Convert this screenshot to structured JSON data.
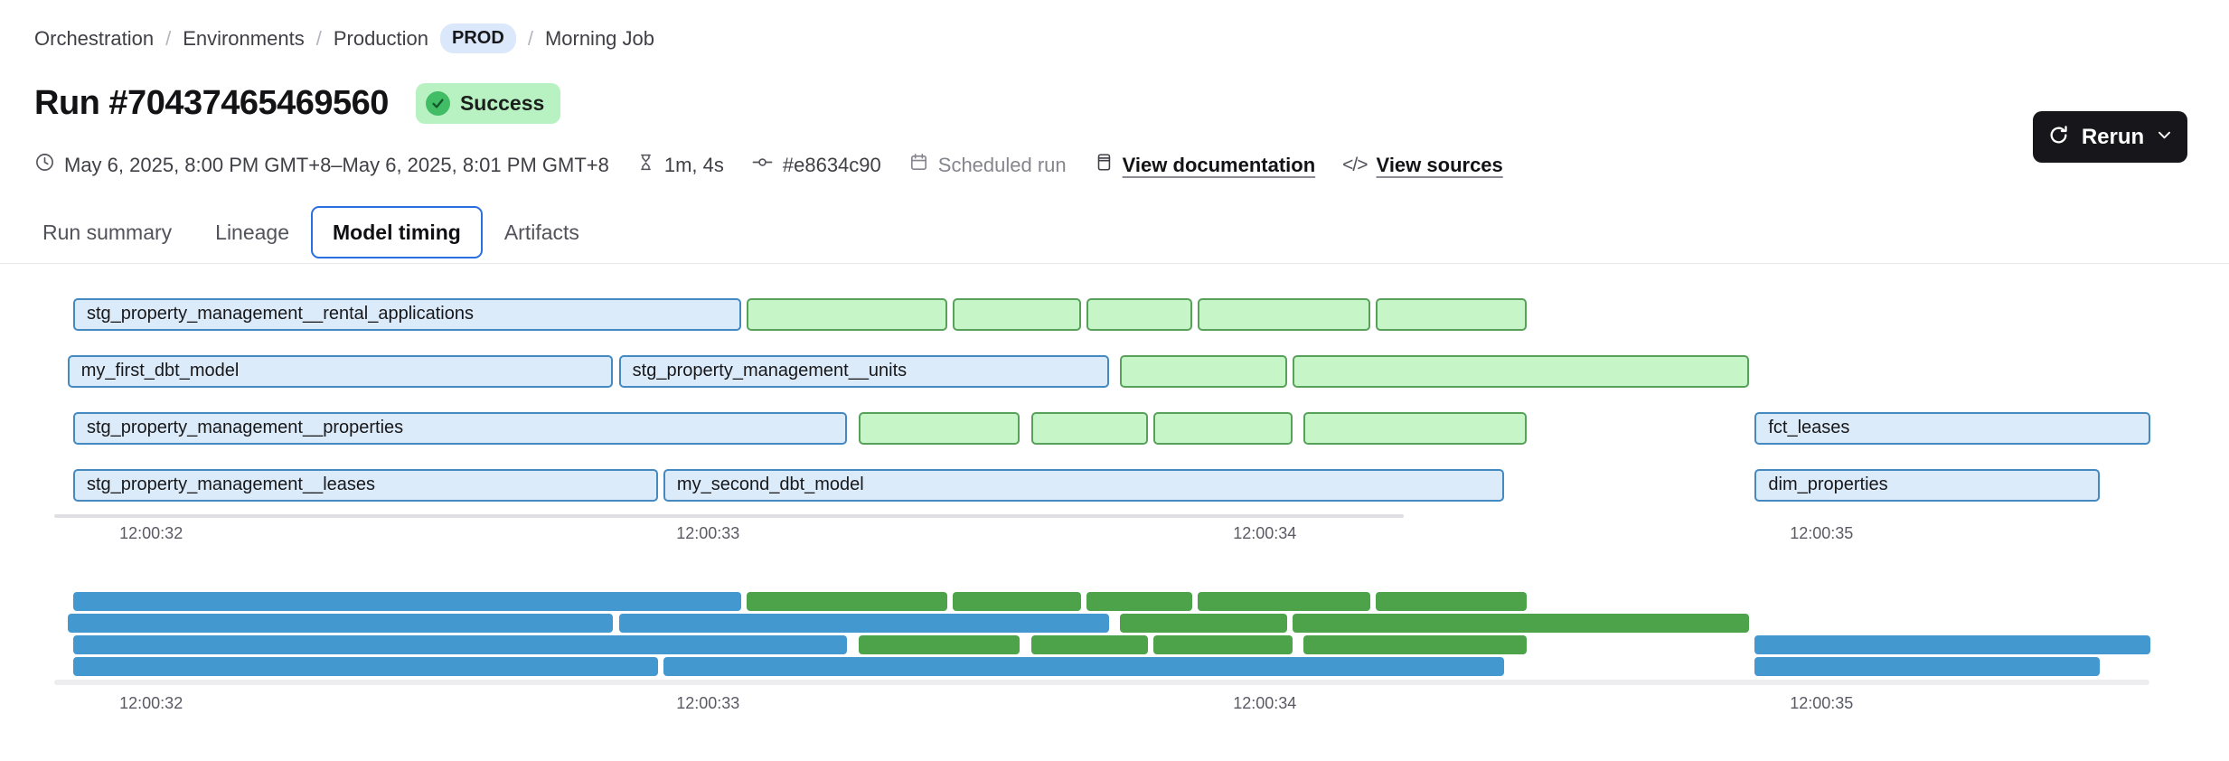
{
  "breadcrumb": {
    "separator": "/",
    "items": [
      "Orchestration",
      "Environments",
      "Production",
      "Morning Job"
    ],
    "env_badge": "PROD"
  },
  "header": {
    "title": "Run #70437465469560",
    "status": "Success"
  },
  "meta": {
    "timerange": "May 6, 2025, 8:00 PM GMT+8–May 6, 2025, 8:01 PM GMT+8",
    "duration": "1m, 4s",
    "commit": "#e8634c90",
    "trigger": "Scheduled run",
    "docs_link": "View documentation",
    "sources_link": "View sources",
    "code_icon_glyph": "</>"
  },
  "actions": {
    "rerun_label": "Rerun"
  },
  "tabs": [
    {
      "label": "Run summary",
      "selected": false
    },
    {
      "label": "Lineage",
      "selected": false
    },
    {
      "label": "Model timing",
      "selected": true
    },
    {
      "label": "Artifacts",
      "selected": false
    }
  ],
  "chart_data": {
    "type": "bar",
    "subtype": "gantt-model-timing",
    "title": "Model timing",
    "time_axis": {
      "domain": [
        31.826,
        35.592
      ],
      "ticks": [
        {
          "t": 32,
          "label": "12:00:32"
        },
        {
          "t": 33,
          "label": "12:00:33"
        },
        {
          "t": 34,
          "label": "12:00:34"
        },
        {
          "t": 35,
          "label": "12:00:35"
        }
      ]
    },
    "colors": {
      "blue_fill": "#dcebfa",
      "blue_border": "#4489bf",
      "green_fill": "#c6f6c8",
      "green_border": "#57a15b",
      "minimap_blue": "#4398d0",
      "minimap_green": "#4ca34a"
    },
    "rows": [
      {
        "bars": [
          {
            "label": "stg_property_management__rental_applications",
            "color": "blue",
            "start": 31.86,
            "end": 33.06
          },
          {
            "color": "green",
            "start": 33.07,
            "end": 33.43
          },
          {
            "color": "green",
            "start": 33.44,
            "end": 33.67
          },
          {
            "color": "green",
            "start": 33.68,
            "end": 33.87
          },
          {
            "color": "green",
            "start": 33.88,
            "end": 34.19
          },
          {
            "color": "green",
            "start": 34.2,
            "end": 34.47
          }
        ]
      },
      {
        "bars": [
          {
            "label": "my_first_dbt_model",
            "color": "blue",
            "start": 31.85,
            "end": 32.83
          },
          {
            "label": "stg_property_management__units",
            "color": "blue",
            "start": 32.84,
            "end": 33.72
          },
          {
            "color": "green",
            "start": 33.74,
            "end": 34.04
          },
          {
            "color": "green",
            "start": 34.05,
            "end": 34.87
          }
        ]
      },
      {
        "bars": [
          {
            "label": "stg_property_management__properties",
            "color": "blue",
            "start": 31.86,
            "end": 33.25
          },
          {
            "color": "green",
            "start": 33.27,
            "end": 33.56
          },
          {
            "color": "green",
            "start": 33.58,
            "end": 33.79
          },
          {
            "color": "green",
            "start": 33.8,
            "end": 34.05
          },
          {
            "color": "green",
            "start": 34.07,
            "end": 34.47
          },
          {
            "label": "fct_leases",
            "color": "blue",
            "start": 34.88,
            "end": 35.59
          }
        ]
      },
      {
        "bars": [
          {
            "label": "stg_property_management__leases",
            "color": "blue",
            "start": 31.86,
            "end": 32.91
          },
          {
            "label": "my_second_dbt_model",
            "color": "blue",
            "start": 32.92,
            "end": 34.43
          },
          {
            "label": "dim_properties",
            "color": "blue",
            "start": 34.88,
            "end": 35.5
          }
        ]
      }
    ]
  }
}
